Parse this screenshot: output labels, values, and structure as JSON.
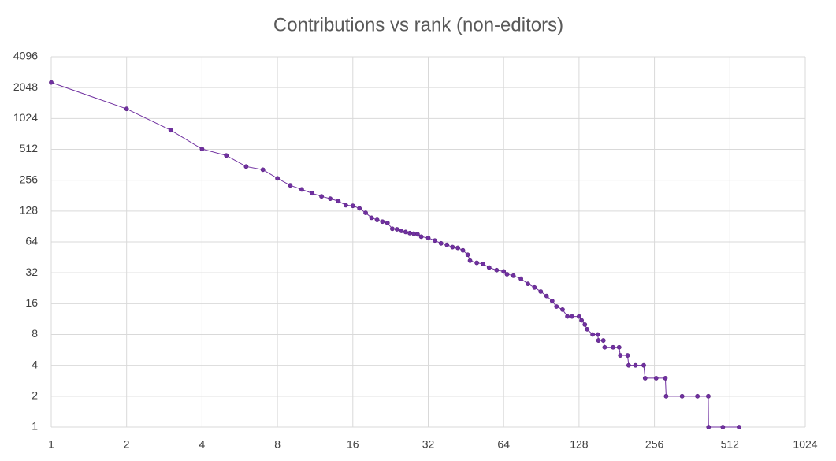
{
  "chart_data": {
    "type": "scatter-line",
    "title": "Contributions vs rank (non-editors)",
    "log_x": true,
    "log_y": true,
    "grid": true,
    "xlim": [
      1,
      1024
    ],
    "xticks": [
      1,
      2,
      4,
      8,
      16,
      32,
      64,
      128,
      256,
      512,
      1024
    ],
    "ylim": [
      1,
      4096
    ],
    "yticks": [
      1,
      2,
      4,
      8,
      16,
      32,
      64,
      128,
      256,
      512,
      1024,
      2048,
      4096
    ],
    "series": [
      {
        "name": "Contributions",
        "color": "#7030a0",
        "x": [
          1,
          2,
          3,
          4,
          5,
          6,
          7,
          8,
          9,
          10,
          11,
          12,
          13,
          14,
          15,
          16,
          17,
          18,
          19,
          20,
          21,
          22,
          23,
          24,
          25,
          26,
          27,
          28,
          29,
          30,
          32,
          34,
          36,
          38,
          40,
          42,
          44,
          46,
          47,
          50,
          53,
          56,
          60,
          64,
          66,
          70,
          75,
          80,
          85,
          90,
          95,
          100,
          104,
          110,
          115,
          120,
          128,
          131,
          135,
          138,
          145,
          152,
          153,
          160,
          162,
          175,
          185,
          187,
          200,
          202,
          215,
          232,
          235,
          260,
          283,
          285,
          330,
          380,
          420,
          421,
          480,
          557
        ],
        "values": [
          2300,
          1270,
          787,
          515,
          446,
          348,
          324,
          267,
          228,
          208,
          191,
          178,
          169,
          160,
          146,
          144,
          136,
          123,
          110,
          105,
          101,
          98,
          86,
          85,
          82,
          80,
          78,
          77,
          76,
          72,
          70,
          66,
          62,
          60,
          57,
          56,
          53,
          48,
          42,
          40,
          39,
          36,
          34,
          33,
          31,
          30,
          28,
          25,
          23,
          21,
          19,
          17,
          15,
          14,
          12,
          12,
          12,
          11,
          10,
          9,
          8,
          8,
          7,
          7,
          6,
          6,
          6,
          5,
          5,
          4,
          4,
          4,
          3,
          3,
          3,
          2,
          2,
          2,
          2,
          1,
          1,
          1
        ]
      }
    ]
  }
}
